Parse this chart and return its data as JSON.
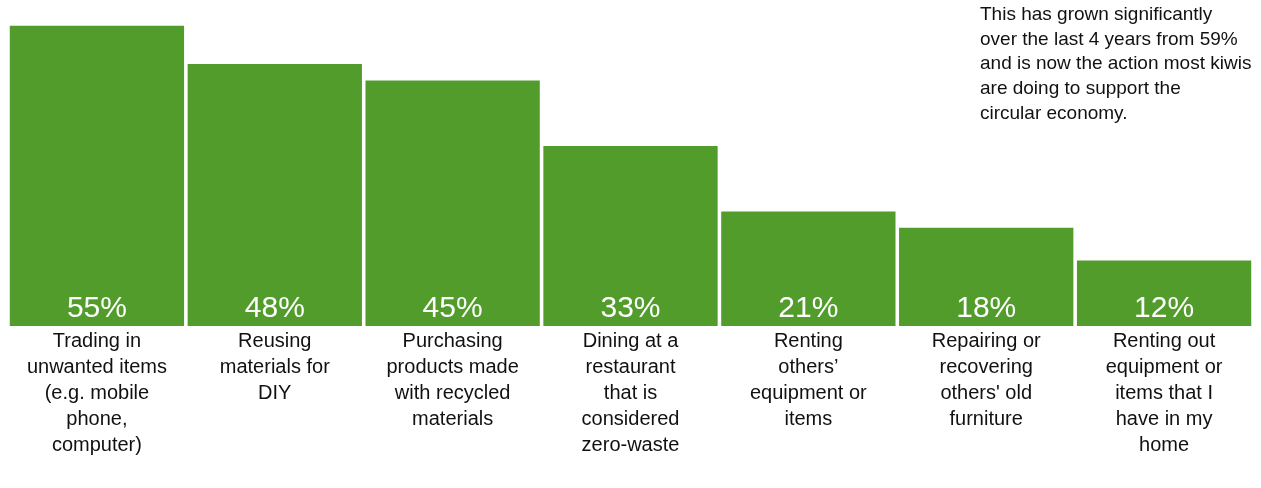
{
  "chart_data": {
    "type": "bar",
    "categories": [
      "Trading in unwanted items (e.g. mobile phone, computer)",
      "Reusing materials for DIY",
      "Purchasing products made with recycled materials",
      "Dining at a restaurant that is considered zero-waste",
      "Renting others’ equipment or items",
      "Repairing or recovering others' old furniture",
      "Renting out equipment or items that I have in my home"
    ],
    "values": [
      55,
      48,
      45,
      33,
      21,
      18,
      12
    ],
    "value_labels": [
      "55%",
      "48%",
      "45%",
      "33%",
      "21%",
      "18%",
      "12%"
    ],
    "color": "#529c2c",
    "annotations": [
      "This has grown significantly over the last 4 years from 59% and is now the action most kiwis are doing to support the circular economy."
    ]
  }
}
